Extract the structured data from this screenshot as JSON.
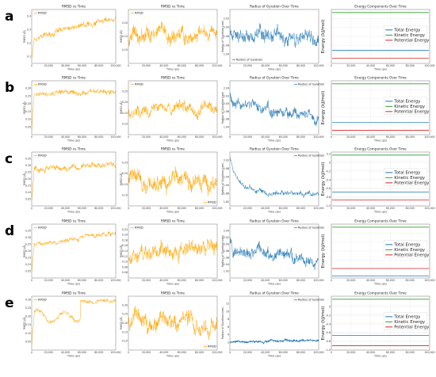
{
  "rows": [
    "a",
    "b",
    "c",
    "d",
    "e"
  ],
  "colors": {
    "rmsd": "#FFA500",
    "rg": "#1F77B4",
    "total": "#1F77B4",
    "kinetic": "#2CA02C",
    "potential": "#D62728"
  },
  "chart_data": [
    {
      "row": "a",
      "type": "line",
      "title": "RMSD vs Time",
      "xlabel": "Time (ps)",
      "ylabel": "RMSD (Å)",
      "legend": "RMSD",
      "legend_position": "top-left",
      "xlim": [
        0,
        100000
      ],
      "ylim": [
        0.05,
        0.45
      ],
      "xticks": [
        "0",
        "20,000",
        "40,000",
        "60,000",
        "80,000",
        "100,000"
      ],
      "yticks": [
        "0.1",
        "0.2",
        "0.3",
        "0.4"
      ],
      "trend": {
        "start": 0.08,
        "early": 0.24,
        "end": 0.39,
        "noise": 0.025
      }
    },
    {
      "row": "a",
      "type": "line",
      "title": "RMSD vs Time",
      "xlabel": "Time (ps)",
      "ylabel": "RMSD (Å)",
      "legend": "RMSD",
      "legend_position": "top-left",
      "xlim": [
        0,
        100000
      ],
      "ylim": [
        0.05,
        0.25
      ],
      "xticks": [
        "0",
        "20,000",
        "40,000",
        "60,000",
        "80,000",
        "100,000"
      ],
      "yticks": [
        "0.10",
        "0.15",
        "0.20"
      ],
      "trend": {
        "start": 0.15,
        "early": 0.15,
        "end": 0.16,
        "noise": 0.035
      }
    },
    {
      "row": "a",
      "type": "line",
      "title": "Radius of Gyration Over Time",
      "xlabel": "Time (ps)",
      "ylabel": "Radius of Gyration (nm)",
      "legend": "Radius of Gyration",
      "legend_position": "bottom-left",
      "xlim": [
        0,
        100000
      ],
      "ylim": [
        1.92,
        2.04
      ],
      "xticks": [
        "0",
        "20,000",
        "40,000",
        "60,000",
        "80,000",
        "100,000"
      ],
      "yticks": [
        "1.94",
        "1.96",
        "1.98",
        "2.00",
        "2.02"
      ],
      "trend": {
        "start": 1.99,
        "early": 1.985,
        "end": 1.98,
        "noise": 0.02
      }
    },
    {
      "row": "a",
      "type": "line",
      "title": "Energy Components Over Time",
      "xlabel": "Time (ps)",
      "ylabel": "Energy (kJ/mol)",
      "legend_position": "center-right",
      "xlim": [
        0,
        100000
      ],
      "ylim": [
        -1.0,
        0.25
      ],
      "xticks": [
        "0",
        "20,000",
        "40,000",
        "60,000",
        "80,000",
        "100,000"
      ],
      "yticks": [],
      "series": [
        {
          "name": "Total Energy",
          "value": -0.7
        },
        {
          "name": "Kinetic Energy",
          "value": 0.18
        },
        {
          "name": "Potential Energy",
          "value": -0.88
        }
      ]
    },
    {
      "row": "b",
      "type": "line",
      "title": "RMSD vs Time",
      "xlabel": "Time (ps)",
      "ylabel": "RMSD (Å)",
      "legend": "RMSD",
      "legend_position": "top-left",
      "xlim": [
        0,
        100000
      ],
      "ylim": [
        0.0,
        0.35
      ],
      "xticks": [
        "0",
        "20,000",
        "40,000",
        "60,000",
        "80,000",
        "100,000"
      ],
      "yticks": [
        "0.05",
        "0.10",
        "0.15",
        "0.20",
        "0.25",
        "0.30"
      ],
      "trend": {
        "start": 0.03,
        "early": 0.26,
        "end": 0.29,
        "noise": 0.02
      }
    },
    {
      "row": "b",
      "type": "line",
      "title": "RMSD vs Time",
      "xlabel": "Time (ps)",
      "ylabel": "RMSD (Å)",
      "legend": "RMSD",
      "legend_position": "top-left",
      "xlim": [
        0,
        100000
      ],
      "ylim": [
        0.05,
        0.3
      ],
      "xticks": [
        "0",
        "20,000",
        "40,000",
        "60,000",
        "80,000",
        "100,000"
      ],
      "yticks": [
        "0.10",
        "0.15",
        "0.20",
        "0.25"
      ],
      "trend": {
        "start": 0.16,
        "early": 0.16,
        "end": 0.18,
        "noise": 0.035
      }
    },
    {
      "row": "b",
      "type": "line",
      "title": "Radius of Gyration Over Time",
      "xlabel": "Time (ps)",
      "ylabel": "Radius of Gyration (nm)",
      "legend": "Radius of Gyration",
      "legend_position": "top-right",
      "xlim": [
        0,
        100000
      ],
      "ylim": [
        1.92,
        2.06
      ],
      "xticks": [
        "0",
        "20,000",
        "40,000",
        "60,000",
        "80,000",
        "100,000"
      ],
      "yticks": [
        "1.94",
        "1.96",
        "1.98",
        "2.00",
        "2.02",
        "2.04"
      ],
      "trend": {
        "start": 2.03,
        "early": 2.0,
        "end": 1.96,
        "noise": 0.018
      }
    },
    {
      "row": "b",
      "type": "line",
      "title": "Energy Components Over Time",
      "xlabel": "Time (ps)",
      "ylabel": "Energy (kJ/mol)",
      "legend_position": "center-right",
      "xlim": [
        0,
        100000
      ],
      "ylim": [
        -1.0,
        0.25
      ],
      "xticks": [
        "0",
        "20,000",
        "40,000",
        "60,000",
        "80,000",
        "100,000"
      ],
      "yticks": [],
      "series": [
        {
          "name": "Total Energy",
          "value": -0.72
        },
        {
          "name": "Kinetic Energy",
          "value": 0.18
        },
        {
          "name": "Potential Energy",
          "value": -0.9
        }
      ]
    },
    {
      "row": "c",
      "type": "line",
      "title": "RMSD vs Time",
      "xlabel": "Time (ps)",
      "ylabel": "RMSD (Å)",
      "legend": "RMSD",
      "legend_position": "top-left",
      "xlim": [
        0,
        100000
      ],
      "ylim": [
        0.0,
        0.4
      ],
      "xticks": [
        "0",
        "20,000",
        "40,000",
        "60,000",
        "80,000",
        "100,000"
      ],
      "yticks": [
        "0.05",
        "0.10",
        "0.15",
        "0.20",
        "0.25",
        "0.30",
        "0.35"
      ],
      "trend": {
        "start": 0.05,
        "early": 0.27,
        "end": 0.3,
        "noise": 0.025
      }
    },
    {
      "row": "c",
      "type": "line",
      "title": "RMSD vs Time",
      "xlabel": "Time (ps)",
      "ylabel": "RMSD (Å)",
      "legend": "RMSD",
      "legend_position": "bottom-right",
      "xlim": [
        0,
        100000
      ],
      "ylim": [
        0.05,
        0.3
      ],
      "xticks": [
        "0",
        "20,000",
        "40,000",
        "60,000",
        "80,000",
        "100,000"
      ],
      "yticks": [
        "0.10",
        "0.15",
        "0.20",
        "0.25"
      ],
      "trend": {
        "start": 0.17,
        "early": 0.17,
        "end": 0.17,
        "noise": 0.05
      }
    },
    {
      "row": "c",
      "type": "line",
      "title": "Radius of Gyration Over Time",
      "xlabel": "Time (ps)",
      "ylabel": "Radius of Gyration (nm)",
      "legend": "Radius of Gyration",
      "legend_position": "top-right",
      "xlim": [
        0,
        100000
      ],
      "ylim": [
        1.8,
        2.06
      ],
      "xticks": [
        "0",
        "20,000",
        "40,000",
        "60,000",
        "80,000",
        "100,000"
      ],
      "yticks": [
        "1.82",
        "1.86",
        "1.90",
        "1.94",
        "1.98",
        "2.02"
      ],
      "trend": {
        "start": 2.03,
        "early": 1.88,
        "end": 1.86,
        "noise": 0.015
      }
    },
    {
      "row": "c",
      "type": "line",
      "title": "Energy Components Over Time",
      "xlabel": "Time (ps)",
      "ylabel": "Energy (kJ/mol)",
      "legend_position": "center-right",
      "xlim": [
        0,
        100000
      ],
      "ylim": [
        -1.0,
        0.25
      ],
      "xticks": [
        "0",
        "20,000",
        "40,000",
        "60,000",
        "80,000",
        "100,000"
      ],
      "yticks": [
        "0.2",
        "0",
        "-0.2",
        "-0.4",
        "-0.6",
        "-0.8",
        "-1.0"
      ],
      "series": [
        {
          "name": "Total Energy",
          "value": -0.68
        },
        {
          "name": "Kinetic Energy",
          "value": 0.18
        },
        {
          "name": "Potential Energy",
          "value": -0.86
        }
      ]
    },
    {
      "row": "d",
      "type": "line",
      "title": "RMSD vs Time",
      "xlabel": "Time (ps)",
      "ylabel": "RMSD (Å)",
      "legend": "RMSD",
      "legend_position": "top-left",
      "xlim": [
        0,
        100000
      ],
      "ylim": [
        0.0,
        0.4
      ],
      "xticks": [
        "0",
        "20,000",
        "40,000",
        "60,000",
        "80,000",
        "100,000"
      ],
      "yticks": [
        "0.05",
        "0.10",
        "0.15",
        "0.20",
        "0.25",
        "0.30",
        "0.35"
      ],
      "trend": {
        "start": 0.04,
        "early": 0.25,
        "end": 0.33,
        "noise": 0.02
      }
    },
    {
      "row": "d",
      "type": "line",
      "title": "RMSD vs Time",
      "xlabel": "Time (ps)",
      "ylabel": "RMSD (Å)",
      "legend": "RMSD",
      "legend_position": "top-left",
      "xlim": [
        0,
        100000
      ],
      "ylim": [
        0.04,
        0.24
      ],
      "xticks": [
        "0",
        "20,000",
        "40,000",
        "60,000",
        "80,000",
        "100,000"
      ],
      "yticks": [
        "0.06",
        "0.08",
        "0.10",
        "0.12",
        "0.14",
        "0.16",
        "0.18",
        "0.20",
        "0.22"
      ],
      "trend": {
        "start": 0.12,
        "early": 0.12,
        "end": 0.15,
        "noise": 0.035
      }
    },
    {
      "row": "d",
      "type": "line",
      "title": "Radius of Gyration Over Time",
      "xlabel": "Time (ps)",
      "ylabel": "Radius of Gyration (nm)",
      "legend": "Radius of Gyration",
      "legend_position": "top-right",
      "xlim": [
        0,
        100000
      ],
      "ylim": [
        1.9,
        2.06
      ],
      "xticks": [
        "0",
        "20,000",
        "40,000",
        "60,000",
        "80,000",
        "100,000"
      ],
      "yticks": [
        "1.92",
        "1.94",
        "1.96",
        "1.98",
        "2.00",
        "2.02",
        "2.04"
      ],
      "trend": {
        "start": 2.02,
        "early": 1.98,
        "end": 1.95,
        "noise": 0.022
      }
    },
    {
      "row": "d",
      "type": "line",
      "title": "Energy Components Over Time",
      "xlabel": "Time (ps)",
      "ylabel": "Energy (kJ/mol)",
      "legend_position": "center-right",
      "xlim": [
        0,
        100000
      ],
      "ylim": [
        -1.0,
        0.25
      ],
      "xticks": [
        "0",
        "20,000",
        "40,000",
        "60,000",
        "80,000",
        "100,000"
      ],
      "yticks": [],
      "series": [
        {
          "name": "Total Energy",
          "value": -0.95
        },
        {
          "name": "Kinetic Energy",
          "value": 0.18
        },
        {
          "name": "Potential Energy",
          "value": -0.78
        }
      ]
    },
    {
      "row": "e",
      "type": "line",
      "title": "RMSD vs Time",
      "xlabel": "Time (ps)",
      "ylabel": "RMSD (Å)",
      "legend": "RMSD",
      "legend_position": "top-left",
      "xlim": [
        0,
        100000
      ],
      "ylim": [
        0.0,
        0.32
      ],
      "xticks": [
        "0",
        "20,000",
        "40,000",
        "60,000",
        "80,000",
        "100,000"
      ],
      "yticks": [
        "0.05",
        "0.10",
        "0.15",
        "0.20",
        "0.25",
        "0.30"
      ],
      "trend": {
        "start": 0.04,
        "early": 0.2,
        "end": 0.29,
        "noise": 0.015,
        "step_at": 58000,
        "step_to": 0.285
      }
    },
    {
      "row": "e",
      "type": "line",
      "title": "RMSD vs Time",
      "xlabel": "Time (ps)",
      "ylabel": "RMSD (Å)",
      "legend": "RMSD",
      "legend_position": "bottom-right",
      "xlim": [
        0,
        100000
      ],
      "ylim": [
        0.05,
        0.35
      ],
      "xticks": [
        "0",
        "20,000",
        "40,000",
        "60,000",
        "80,000",
        "100,000"
      ],
      "yticks": [
        "0.10",
        "0.15",
        "0.20",
        "0.25",
        "0.30"
      ],
      "trend": {
        "start": 0.2,
        "early": 0.2,
        "end": 0.2,
        "noise": 0.06
      }
    },
    {
      "row": "e",
      "type": "line",
      "title": "Radius of Gyration Over Time",
      "xlabel": "Time (ps)",
      "ylabel": "Radius of Gyration (nm)",
      "legend": "Radius of Gyration",
      "legend_position": "top-right",
      "xlim": [
        0,
        100000
      ],
      "ylim": [
        0,
        14
      ],
      "xticks": [
        "0",
        "20,000",
        "40,000",
        "60,000",
        "80,000",
        "100,000"
      ],
      "yticks": [
        "2",
        "4",
        "6",
        "8",
        "10",
        "12"
      ],
      "trend": {
        "start": 1.9,
        "early": 2.0,
        "end": 2.6,
        "noise": 0.35
      }
    },
    {
      "row": "e",
      "type": "line",
      "title": "Energy Components Over Time",
      "xlabel": "Time (ps)",
      "ylabel": "Energy (kJ/mol)",
      "legend_position": "center-right",
      "xlim": [
        0,
        100000
      ],
      "ylim": [
        -1.0,
        0.25
      ],
      "xticks": [
        "0",
        "20,000",
        "40,000",
        "60,000",
        "80,000",
        "100,000"
      ],
      "yticks": [
        "0",
        "-0.2",
        "-0.4",
        "-0.6",
        "-0.8",
        "-1.0"
      ],
      "series": [
        {
          "name": "Total Energy",
          "value": -0.66
        },
        {
          "name": "Kinetic Energy",
          "value": 0.18
        },
        {
          "name": "Potential Energy",
          "value": -0.9
        }
      ]
    }
  ]
}
